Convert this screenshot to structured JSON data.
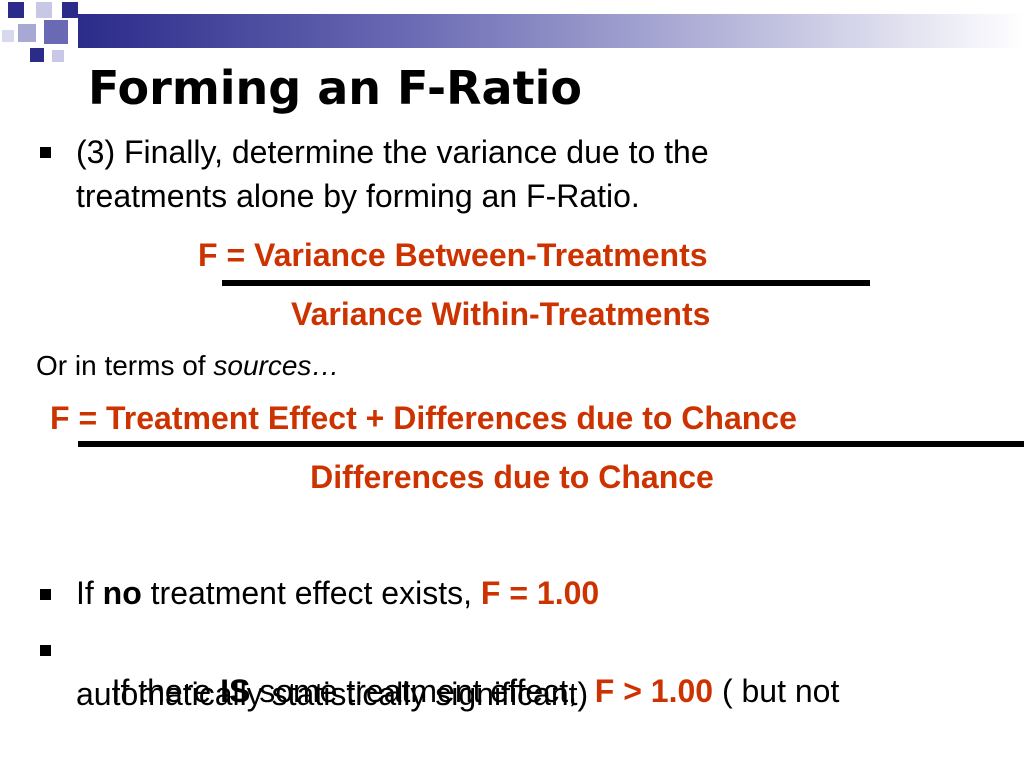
{
  "title": "Forming an F-Ratio",
  "bullet1": {
    "line1": "(3) Finally, determine the variance due to the",
    "line2": "treatments alone by forming an F-Ratio."
  },
  "formula1": {
    "numerator": "F = Variance Between-Treatments",
    "denominator": "Variance Within-Treatments"
  },
  "sources_intro": {
    "prefix": "Or in terms of ",
    "emphasis": "sources…"
  },
  "formula2": {
    "numerator": "F = Treatment Effect + Differences due to Chance",
    "denominator": "Differences due to Chance"
  },
  "bullet2": {
    "prefix": "If ",
    "bold": "no",
    "middle": " treatment effect exists, ",
    "red": "F = 1.00"
  },
  "bullet3": {
    "prefix": "If there ",
    "bold": "IS",
    "middle": " some treatment effect,  ",
    "red": "F > 1.00",
    "suffix": " ( but not",
    "line2": "automatically statistically significant)"
  },
  "colors": {
    "accent_red": "#cc3300",
    "header_blue": "#2b2b8a"
  }
}
